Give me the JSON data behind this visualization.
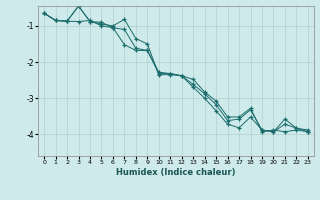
{
  "xlabel": "Humidex (Indice chaleur)",
  "ylabel": "",
  "background_color": "#ceeaea",
  "grid_color": "#b0d0d0",
  "line_color": "#1a6b6b",
  "xlim": [
    -0.5,
    23.5
  ],
  "ylim": [
    -4.6,
    -0.45
  ],
  "yticks": [
    -4,
    -3,
    -2,
    -1
  ],
  "xticks": [
    0,
    1,
    2,
    3,
    4,
    5,
    6,
    7,
    8,
    9,
    10,
    11,
    12,
    13,
    14,
    15,
    16,
    17,
    18,
    19,
    20,
    21,
    22,
    23
  ],
  "series": [
    [
      0,
      1,
      2,
      3,
      4,
      5,
      6,
      7,
      8,
      9,
      10,
      11,
      12,
      13,
      14,
      15,
      16,
      17,
      18,
      19,
      20,
      21,
      22,
      23
    ],
    [
      -0.65,
      -0.85,
      -0.87,
      -0.45,
      -0.88,
      -0.95,
      -1.0,
      -0.82,
      -1.35,
      -1.5,
      -2.35,
      -2.35,
      -2.38,
      -2.7,
      -3.0,
      -3.35,
      -3.72,
      -3.82,
      -3.52,
      -3.88,
      -3.93,
      -3.58,
      -3.83,
      -3.88
    ],
    [
      -0.65,
      -0.85,
      -0.87,
      -0.45,
      -0.88,
      -0.9,
      -1.05,
      -1.52,
      -1.68,
      -1.68,
      -2.28,
      -2.32,
      -2.38,
      -2.48,
      -2.83,
      -3.08,
      -3.52,
      -3.52,
      -3.28,
      -3.93,
      -3.88,
      -3.93,
      -3.88,
      -3.93
    ],
    [
      -0.65,
      -0.85,
      -0.87,
      -0.88,
      -0.85,
      -1.0,
      -1.05,
      -1.1,
      -1.62,
      -1.68,
      -2.32,
      -2.32,
      -2.38,
      -2.62,
      -2.88,
      -3.18,
      -3.62,
      -3.58,
      -3.32,
      -3.88,
      -3.93,
      -3.72,
      -3.83,
      -3.93
    ]
  ]
}
